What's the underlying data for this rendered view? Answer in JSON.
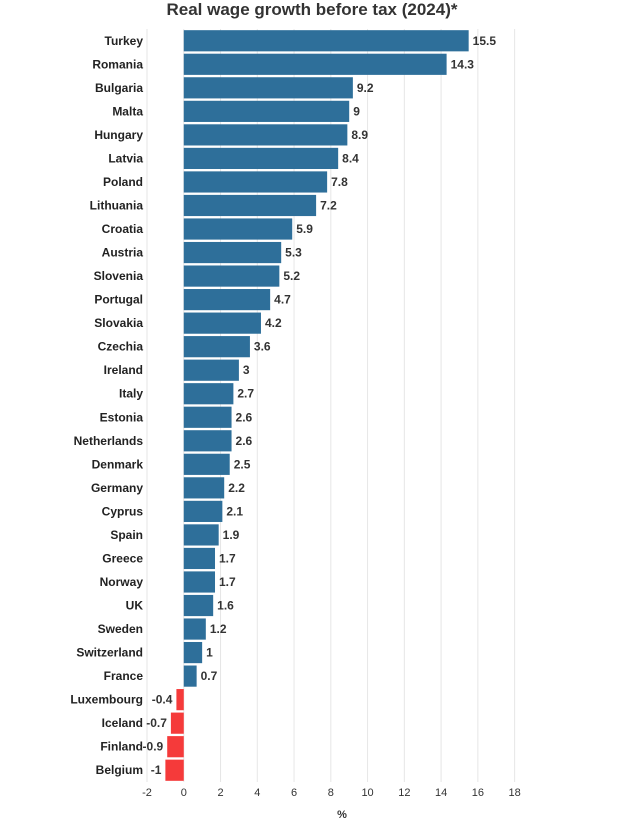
{
  "chart_data": {
    "type": "bar",
    "orientation": "horizontal",
    "title": "Real wage growth before tax (2024)*",
    "xlabel": "%",
    "ylabel": "",
    "xlim": [
      -2,
      19
    ],
    "xticks": [
      -2,
      0,
      2,
      4,
      6,
      8,
      10,
      12,
      14,
      16,
      18
    ],
    "grid": true,
    "legend": "none",
    "colors": {
      "positive": "#2e6f9a",
      "negative": "#f53a3a"
    },
    "categories": [
      "Turkey",
      "Romania",
      "Bulgaria",
      "Malta",
      "Hungary",
      "Latvia",
      "Poland",
      "Lithuania",
      "Croatia",
      "Austria",
      "Slovenia",
      "Portugal",
      "Slovakia",
      "Czechia",
      "Ireland",
      "Italy",
      "Estonia",
      "Netherlands",
      "Denmark",
      "Germany",
      "Cyprus",
      "Spain",
      "Greece",
      "Norway",
      "UK",
      "Sweden",
      "Switzerland",
      "France",
      "Luxembourg",
      "Iceland",
      "Finland",
      "Belgium"
    ],
    "values": [
      15.5,
      14.3,
      9.2,
      9,
      8.9,
      8.4,
      7.8,
      7.2,
      5.9,
      5.3,
      5.2,
      4.7,
      4.2,
      3.6,
      3,
      2.7,
      2.6,
      2.6,
      2.5,
      2.2,
      2.1,
      1.9,
      1.7,
      1.7,
      1.6,
      1.2,
      1,
      0.7,
      -0.4,
      -0.7,
      -0.9,
      -1
    ]
  }
}
